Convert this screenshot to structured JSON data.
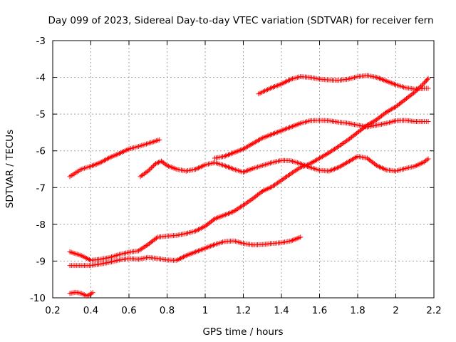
{
  "chart_data": {
    "type": "scatter",
    "title": "Day 099 of 2023, Sidereal Day-to-day VTEC variation (SDTVAR) for receiver fern",
    "xlabel": "GPS time / hours",
    "ylabel": "SDTVAR / TECUs",
    "xlim": [
      0.2,
      2.2
    ],
    "ylim": [
      -10,
      -3
    ],
    "xticks": [
      0.2,
      0.4,
      0.6,
      0.8,
      1,
      1.2,
      1.4,
      1.6,
      1.8,
      2,
      2.2
    ],
    "xtick_labels": [
      "0.2",
      "0.4",
      "0.6",
      "0.8",
      "1",
      "1.2",
      "1.4",
      "1.6",
      "1.8",
      "2",
      "2.2"
    ],
    "yticks": [
      -3,
      -4,
      -5,
      -6,
      -7,
      -8,
      -9,
      -10
    ],
    "ytick_labels": [
      "-3",
      "-4",
      "-5",
      "-6",
      "-7",
      "-8",
      "-9",
      "-10"
    ],
    "grid": true,
    "marker": "+",
    "color": "#ff0000",
    "series": [
      {
        "name": "track-1",
        "points": [
          [
            0.29,
            -6.7
          ],
          [
            0.32,
            -6.6
          ],
          [
            0.35,
            -6.5
          ],
          [
            0.4,
            -6.42
          ],
          [
            0.45,
            -6.32
          ],
          [
            0.5,
            -6.18
          ],
          [
            0.55,
            -6.07
          ],
          [
            0.6,
            -5.95
          ],
          [
            0.65,
            -5.88
          ],
          [
            0.7,
            -5.8
          ],
          [
            0.76,
            -5.7
          ]
        ]
      },
      {
        "name": "track-2",
        "points": [
          [
            0.29,
            -8.75
          ],
          [
            0.35,
            -8.85
          ],
          [
            0.4,
            -8.98
          ],
          [
            0.45,
            -8.95
          ],
          [
            0.5,
            -8.9
          ],
          [
            0.55,
            -8.82
          ],
          [
            0.6,
            -8.76
          ],
          [
            0.65,
            -8.72
          ],
          [
            0.7,
            -8.55
          ],
          [
            0.75,
            -8.35
          ],
          [
            0.8,
            -8.32
          ],
          [
            0.85,
            -8.3
          ],
          [
            0.9,
            -8.25
          ],
          [
            0.95,
            -8.18
          ],
          [
            1.0,
            -8.05
          ],
          [
            1.05,
            -7.85
          ],
          [
            1.1,
            -7.75
          ],
          [
            1.15,
            -7.65
          ],
          [
            1.2,
            -7.48
          ],
          [
            1.25,
            -7.3
          ],
          [
            1.3,
            -7.1
          ],
          [
            1.35,
            -6.98
          ],
          [
            1.4,
            -6.8
          ],
          [
            1.45,
            -6.62
          ],
          [
            1.5,
            -6.45
          ],
          [
            1.55,
            -6.35
          ],
          [
            1.6,
            -6.2
          ],
          [
            1.65,
            -6.05
          ],
          [
            1.7,
            -5.88
          ],
          [
            1.75,
            -5.7
          ],
          [
            1.8,
            -5.5
          ],
          [
            1.85,
            -5.3
          ],
          [
            1.9,
            -5.15
          ],
          [
            1.95,
            -4.95
          ],
          [
            2.0,
            -4.8
          ],
          [
            2.05,
            -4.6
          ],
          [
            2.1,
            -4.4
          ],
          [
            2.15,
            -4.15
          ],
          [
            2.17,
            -4.03
          ]
        ]
      },
      {
        "name": "track-3",
        "points": [
          [
            0.29,
            -9.12
          ],
          [
            0.35,
            -9.12
          ],
          [
            0.4,
            -9.12
          ],
          [
            0.45,
            -9.08
          ],
          [
            0.5,
            -9.03
          ],
          [
            0.55,
            -8.97
          ],
          [
            0.6,
            -8.93
          ],
          [
            0.65,
            -8.95
          ],
          [
            0.7,
            -8.9
          ],
          [
            0.75,
            -8.93
          ],
          [
            0.8,
            -8.97
          ],
          [
            0.85,
            -8.98
          ],
          [
            0.9,
            -8.85
          ],
          [
            0.95,
            -8.75
          ],
          [
            1.0,
            -8.65
          ],
          [
            1.05,
            -8.55
          ],
          [
            1.1,
            -8.47
          ],
          [
            1.15,
            -8.45
          ],
          [
            1.2,
            -8.52
          ],
          [
            1.25,
            -8.56
          ],
          [
            1.3,
            -8.55
          ],
          [
            1.35,
            -8.52
          ],
          [
            1.4,
            -8.5
          ],
          [
            1.45,
            -8.45
          ],
          [
            1.5,
            -8.35
          ]
        ]
      },
      {
        "name": "track-4",
        "points": [
          [
            0.29,
            -9.88
          ],
          [
            0.32,
            -9.85
          ],
          [
            0.35,
            -9.88
          ],
          [
            0.38,
            -9.95
          ],
          [
            0.41,
            -9.86
          ]
        ]
      },
      {
        "name": "track-5",
        "points": [
          [
            0.66,
            -6.7
          ],
          [
            0.7,
            -6.55
          ],
          [
            0.74,
            -6.35
          ],
          [
            0.77,
            -6.28
          ],
          [
            0.8,
            -6.4
          ],
          [
            0.85,
            -6.5
          ],
          [
            0.9,
            -6.55
          ],
          [
            0.95,
            -6.5
          ],
          [
            1.0,
            -6.38
          ],
          [
            1.05,
            -6.32
          ],
          [
            1.1,
            -6.4
          ],
          [
            1.15,
            -6.5
          ],
          [
            1.2,
            -6.58
          ],
          [
            1.25,
            -6.48
          ],
          [
            1.3,
            -6.4
          ],
          [
            1.35,
            -6.32
          ],
          [
            1.4,
            -6.26
          ],
          [
            1.45,
            -6.27
          ],
          [
            1.5,
            -6.35
          ],
          [
            1.55,
            -6.45
          ],
          [
            1.6,
            -6.53
          ],
          [
            1.65,
            -6.55
          ],
          [
            1.7,
            -6.45
          ],
          [
            1.75,
            -6.3
          ],
          [
            1.8,
            -6.15
          ],
          [
            1.85,
            -6.2
          ],
          [
            1.9,
            -6.4
          ],
          [
            1.95,
            -6.52
          ],
          [
            2.0,
            -6.55
          ],
          [
            2.05,
            -6.48
          ],
          [
            2.1,
            -6.42
          ],
          [
            2.15,
            -6.3
          ],
          [
            2.17,
            -6.22
          ]
        ]
      },
      {
        "name": "track-6",
        "points": [
          [
            1.05,
            -6.2
          ],
          [
            1.1,
            -6.15
          ],
          [
            1.15,
            -6.05
          ],
          [
            1.2,
            -5.95
          ],
          [
            1.25,
            -5.8
          ],
          [
            1.3,
            -5.65
          ],
          [
            1.35,
            -5.55
          ],
          [
            1.4,
            -5.45
          ],
          [
            1.45,
            -5.35
          ],
          [
            1.5,
            -5.25
          ],
          [
            1.55,
            -5.18
          ],
          [
            1.6,
            -5.17
          ],
          [
            1.65,
            -5.18
          ],
          [
            1.7,
            -5.22
          ],
          [
            1.75,
            -5.25
          ],
          [
            1.8,
            -5.3
          ],
          [
            1.85,
            -5.35
          ],
          [
            1.9,
            -5.3
          ],
          [
            1.95,
            -5.25
          ],
          [
            2.0,
            -5.18
          ],
          [
            2.05,
            -5.17
          ],
          [
            2.1,
            -5.2
          ],
          [
            2.15,
            -5.2
          ],
          [
            2.17,
            -5.2
          ]
        ]
      },
      {
        "name": "track-7",
        "points": [
          [
            1.28,
            -4.45
          ],
          [
            1.32,
            -4.35
          ],
          [
            1.35,
            -4.28
          ],
          [
            1.4,
            -4.18
          ],
          [
            1.45,
            -4.05
          ],
          [
            1.5,
            -3.98
          ],
          [
            1.55,
            -4.0
          ],
          [
            1.6,
            -4.05
          ],
          [
            1.65,
            -4.07
          ],
          [
            1.7,
            -4.08
          ],
          [
            1.75,
            -4.05
          ],
          [
            1.8,
            -3.98
          ],
          [
            1.85,
            -3.95
          ],
          [
            1.9,
            -4.0
          ],
          [
            1.95,
            -4.1
          ],
          [
            2.0,
            -4.2
          ],
          [
            2.05,
            -4.28
          ],
          [
            2.1,
            -4.32
          ],
          [
            2.15,
            -4.3
          ],
          [
            2.17,
            -4.3
          ]
        ]
      }
    ]
  }
}
